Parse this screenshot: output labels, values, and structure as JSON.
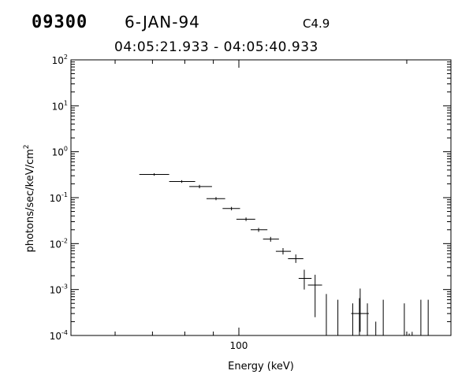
{
  "header": {
    "event_id": "09300",
    "date": "6-JAN-94",
    "goes_class": "C4.9",
    "time_range": "04:05:21.933 - 04:05:40.933"
  },
  "chart_data": {
    "type": "scatter",
    "title": "",
    "xlabel": "Energy (keV)",
    "ylabel": "photons/sec/keV/cm",
    "ylabel_superscript": "2",
    "x_scale": "log",
    "y_scale": "log",
    "xlim": [
      50,
      240
    ],
    "ylim": [
      0.0001,
      100
    ],
    "x_tick_labels": [
      {
        "value": 100,
        "label": "100"
      }
    ],
    "y_tick_labels": [
      {
        "value": 100,
        "base": "10",
        "exp": "2"
      },
      {
        "value": 10,
        "base": "10",
        "exp": "1"
      },
      {
        "value": 1,
        "base": "10",
        "exp": "0"
      },
      {
        "value": 0.1,
        "base": "10",
        "exp": "-1"
      },
      {
        "value": 0.01,
        "base": "10",
        "exp": "-2"
      },
      {
        "value": 0.001,
        "base": "10",
        "exp": "-3"
      },
      {
        "value": 0.0001,
        "base": "10",
        "exp": "-4"
      }
    ],
    "grid": false,
    "legend": "none",
    "series": [
      {
        "points": [
          {
            "x": 70.5,
            "xlo": 66.3,
            "xhi": 75.0,
            "y": 0.32,
            "ylo": 0.3,
            "yhi": 0.34
          },
          {
            "x": 79.0,
            "xlo": 75.0,
            "xhi": 83.5,
            "y": 0.225,
            "ylo": 0.21,
            "yhi": 0.24
          },
          {
            "x": 85.0,
            "xlo": 81.5,
            "xhi": 89.5,
            "y": 0.175,
            "ylo": 0.16,
            "yhi": 0.19
          },
          {
            "x": 91.0,
            "xlo": 87.5,
            "xhi": 94.5,
            "y": 0.095,
            "ylo": 0.088,
            "yhi": 0.103
          },
          {
            "x": 97.0,
            "xlo": 93.5,
            "xhi": 100.5,
            "y": 0.058,
            "ylo": 0.053,
            "yhi": 0.063
          },
          {
            "x": 103.0,
            "xlo": 99.0,
            "xhi": 107.0,
            "y": 0.034,
            "ylo": 0.031,
            "yhi": 0.037
          },
          {
            "x": 108.5,
            "xlo": 105.0,
            "xhi": 112.5,
            "y": 0.02,
            "ylo": 0.018,
            "yhi": 0.022
          },
          {
            "x": 114.0,
            "xlo": 110.5,
            "xhi": 118.0,
            "y": 0.0125,
            "ylo": 0.011,
            "yhi": 0.014
          },
          {
            "x": 120.0,
            "xlo": 116.5,
            "xhi": 124.0,
            "y": 0.0068,
            "ylo": 0.0058,
            "yhi": 0.008
          },
          {
            "x": 126.5,
            "xlo": 122.5,
            "xhi": 130.5,
            "y": 0.0047,
            "ylo": 0.0038,
            "yhi": 0.0058
          },
          {
            "x": 131.0,
            "xlo": 128.0,
            "xhi": 135.0,
            "y": 0.00175,
            "ylo": 0.001,
            "yhi": 0.0027
          },
          {
            "x": 137.0,
            "xlo": 133.0,
            "xhi": 141.0,
            "y": 0.00125,
            "ylo": 0.00025,
            "yhi": 0.0021
          },
          {
            "x": 165.0,
            "xlo": 159.0,
            "xhi": 171.0,
            "y": 0.0003,
            "ylo": 0.00012,
            "yhi": 0.00105
          }
        ],
        "upper_limits": [
          {
            "x": 143.5,
            "y": 0.0008
          },
          {
            "x": 150.5,
            "y": 0.0006
          },
          {
            "x": 160.0,
            "y": 0.0005
          },
          {
            "x": 164.5,
            "y": 0.00065
          },
          {
            "x": 170.0,
            "y": 0.0005
          },
          {
            "x": 176.0,
            "y": 0.0002
          },
          {
            "x": 181.5,
            "y": 0.0006
          },
          {
            "x": 198.0,
            "y": 0.0005
          },
          {
            "x": 202.0,
            "y": 0.00011
          },
          {
            "x": 204.5,
            "y": 0.00012
          },
          {
            "x": 212.0,
            "y": 0.0006
          },
          {
            "x": 218.5,
            "y": 0.0006
          }
        ]
      }
    ]
  }
}
